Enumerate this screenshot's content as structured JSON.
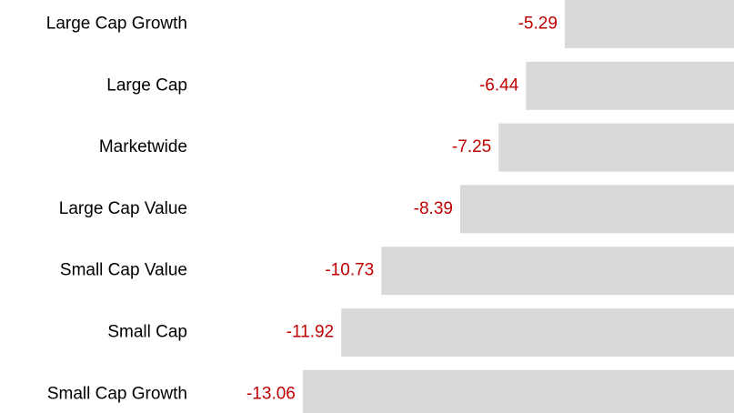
{
  "chart_data": {
    "type": "bar",
    "orientation": "horizontal",
    "categories": [
      "Large Cap Growth",
      "Large Cap",
      "Marketwide",
      "Large Cap Value",
      "Small Cap Value",
      "Small Cap",
      "Small Cap Growth"
    ],
    "values": [
      -5.29,
      -6.44,
      -7.25,
      -8.39,
      -10.73,
      -11.92,
      -13.06
    ],
    "color": "#d9d9d9",
    "label_color": "#c00000"
  }
}
